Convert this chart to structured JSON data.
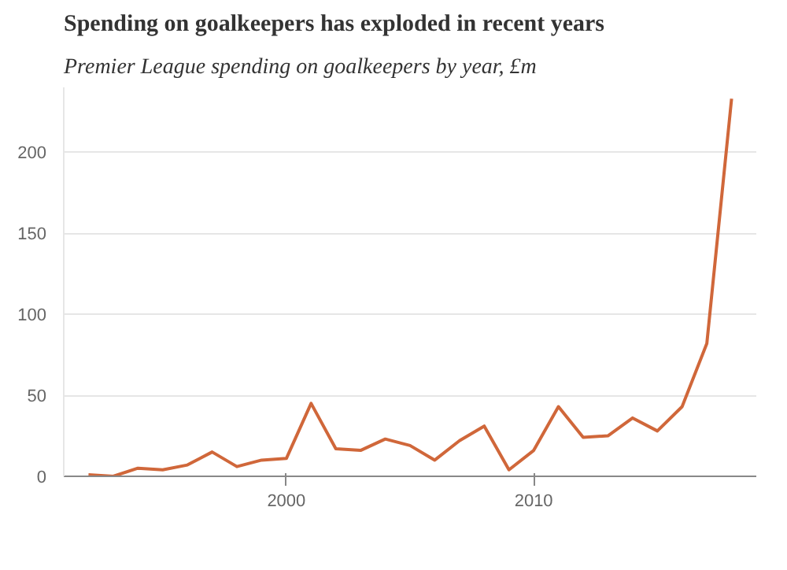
{
  "chart_data": {
    "type": "line",
    "title": "Spending on goalkeepers has exploded in recent years",
    "subtitle": "Premier League spending on goalkeepers by year, £m",
    "x": [
      1992,
      1993,
      1994,
      1995,
      1996,
      1997,
      1998,
      1999,
      2000,
      2001,
      2002,
      2003,
      2004,
      2005,
      2006,
      2007,
      2008,
      2009,
      2010,
      2011,
      2012,
      2013,
      2014,
      2015,
      2016,
      2017,
      2018
    ],
    "series": [
      {
        "color": "#d0673a",
        "values": [
          1,
          0,
          5,
          4,
          7,
          15,
          6,
          10,
          11,
          45,
          17,
          16,
          23,
          19,
          10,
          22,
          31,
          4,
          16,
          43,
          24,
          25,
          36,
          28,
          43,
          82,
          233
        ]
      }
    ],
    "xlim": [
      1991,
      2019
    ],
    "xticks": [
      2000,
      2010
    ],
    "ylim": [
      0,
      240
    ],
    "yticks": [
      0,
      50,
      100,
      150,
      200
    ],
    "grid": "y",
    "marker": "none",
    "line_style": "solid"
  }
}
